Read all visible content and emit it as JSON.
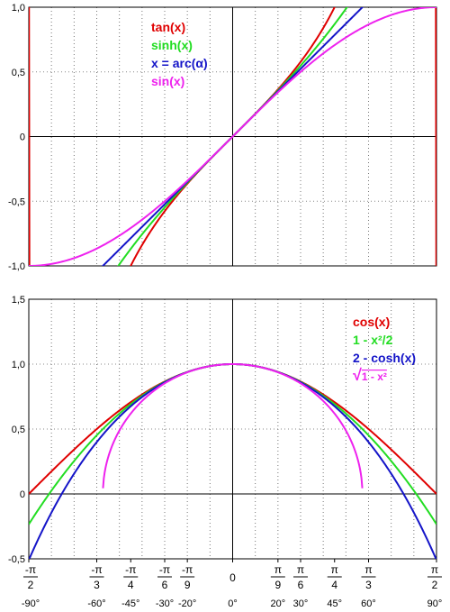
{
  "chart_data": [
    {
      "type": "line",
      "xlim": [
        -1.5708,
        1.5708
      ],
      "ylim": [
        -1.0,
        1.0
      ],
      "grid": true,
      "yticks": [
        {
          "value": 1.0,
          "label": "1,0"
        },
        {
          "value": 0.5,
          "label": "0,5"
        },
        {
          "value": 0.0,
          "label": "0"
        },
        {
          "value": -0.5,
          "label": "-0,5"
        },
        {
          "value": -1.0,
          "label": "-1,0"
        }
      ],
      "legend_position": "top-center",
      "series": [
        {
          "name": "tan(x)",
          "color": "#e00000",
          "function": "tan"
        },
        {
          "name": "sinh(x)",
          "color": "#22dd22",
          "function": "sinh"
        },
        {
          "name": "x = arc(α)",
          "color": "#1414c8",
          "function": "identity"
        },
        {
          "name": "sin(x)",
          "color": "#ee22ee",
          "function": "sin"
        }
      ]
    },
    {
      "type": "line",
      "xlim": [
        -1.5708,
        1.5708
      ],
      "ylim": [
        -0.5,
        1.5
      ],
      "grid": true,
      "yticks": [
        {
          "value": 1.5,
          "label": "1,5"
        },
        {
          "value": 1.0,
          "label": "1,0"
        },
        {
          "value": 0.5,
          "label": "0,5"
        },
        {
          "value": 0.0,
          "label": "0"
        },
        {
          "value": -0.5,
          "label": "-0,5"
        }
      ],
      "legend_position": "top-right",
      "series": [
        {
          "name": "cos(x)",
          "color": "#e00000",
          "function": "cos"
        },
        {
          "name": "1 - x²/2",
          "color": "#22dd22",
          "function": "taylor"
        },
        {
          "name": "2 - cosh(x)",
          "color": "#1414c8",
          "function": "twominuscosh"
        },
        {
          "name": "1 - x²",
          "color": "#ee22ee",
          "function": "sqrt",
          "label_prefix": "√"
        }
      ],
      "xticks": [
        {
          "value": -1.5708,
          "num": "-π",
          "den": "2",
          "deg": "-90°"
        },
        {
          "value": -1.0472,
          "num": "-π",
          "den": "3",
          "deg": "-60°"
        },
        {
          "value": -0.7854,
          "num": "-π",
          "den": "4",
          "deg": "-45°"
        },
        {
          "value": -0.5236,
          "num": "-π",
          "den": "6",
          "deg": "-30°"
        },
        {
          "value": -0.3491,
          "num": "-π",
          "den": "9",
          "deg": "-20°"
        },
        {
          "value": 0.0,
          "num": "0",
          "den": "",
          "deg": "0°"
        },
        {
          "value": 0.3491,
          "num": "π",
          "den": "9",
          "deg": "20°"
        },
        {
          "value": 0.5236,
          "num": "π",
          "den": "6",
          "deg": "30°"
        },
        {
          "value": 0.7854,
          "num": "π",
          "den": "4",
          "deg": "45°"
        },
        {
          "value": 1.0472,
          "num": "π",
          "den": "3",
          "deg": "60°"
        },
        {
          "value": 1.5708,
          "num": "π",
          "den": "2",
          "deg": "90°"
        }
      ]
    }
  ]
}
